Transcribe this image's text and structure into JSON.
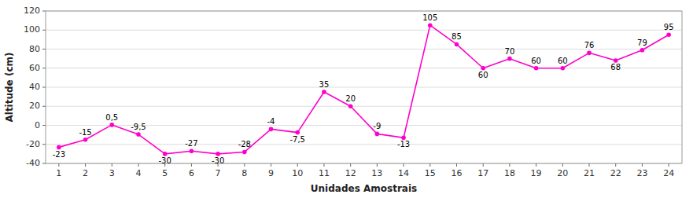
{
  "chart_data": {
    "type": "line",
    "x": [
      1,
      2,
      3,
      4,
      5,
      6,
      7,
      8,
      9,
      10,
      11,
      12,
      13,
      14,
      15,
      16,
      17,
      18,
      19,
      20,
      21,
      22,
      23,
      24
    ],
    "values": [
      -23,
      -15,
      0.5,
      -9.5,
      -30,
      -27,
      -30,
      -28,
      -4,
      -7.5,
      35,
      20,
      -9,
      -13,
      105,
      85,
      60,
      70,
      60,
      60,
      76,
      68,
      79,
      95
    ],
    "value_labels": [
      "-23",
      "-15",
      "0,5",
      "-9,5",
      "-30",
      "-27",
      "-30",
      "-28",
      "-4",
      "-7,5",
      "35",
      "20",
      "-9",
      "-13",
      "105",
      "85",
      "60",
      "70",
      "60",
      "60",
      "76",
      "68",
      "79",
      "95"
    ],
    "data_labels": true,
    "color": "#FF00CC",
    "marker": "circle",
    "xlabel": "Unidades Amostrais",
    "ylabel": "Altitude (cm)",
    "xlim": [
      0.5,
      24.5
    ],
    "xticks": [
      1,
      2,
      3,
      4,
      5,
      6,
      7,
      8,
      9,
      10,
      11,
      12,
      13,
      14,
      15,
      16,
      17,
      18,
      19,
      20,
      21,
      22,
      23,
      24
    ],
    "ylim": [
      -40,
      120
    ],
    "yticks": [
      -40,
      -20,
      0,
      20,
      40,
      60,
      80,
      100,
      120
    ],
    "grid": true
  }
}
